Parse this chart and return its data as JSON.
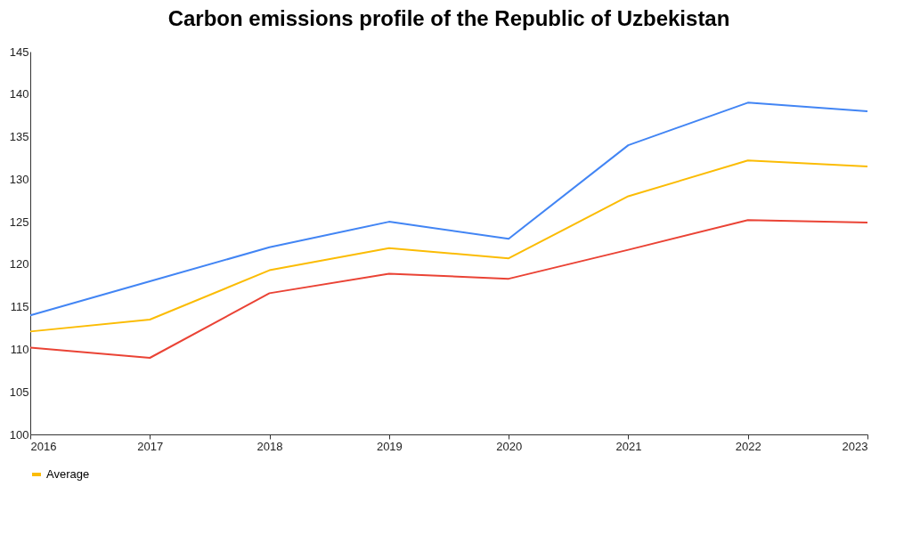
{
  "chart_data": {
    "type": "line",
    "title": "Carbon emissions profile of the Republic of Uzbekistan",
    "x": [
      2016,
      2017,
      2018,
      2019,
      2020,
      2021,
      2022,
      2023
    ],
    "xlim": [
      2016,
      2023
    ],
    "xticks": [
      2016,
      2017,
      2018,
      2019,
      2020,
      2021,
      2022,
      2023
    ],
    "ylim": [
      100,
      145
    ],
    "yticks": [
      100,
      105,
      110,
      115,
      120,
      125,
      130,
      135,
      140,
      145
    ],
    "series": [
      {
        "color": "#4285f4",
        "values": [
          114,
          118,
          122,
          125,
          123,
          134,
          139,
          138
        ]
      },
      {
        "color": "#ea4335",
        "values": [
          110.2,
          109,
          116.6,
          118.9,
          118.3,
          121.7,
          125.2,
          124.9
        ]
      },
      {
        "name": "Average",
        "color": "#fbbc04",
        "values": [
          112.1,
          113.5,
          119.3,
          121.9,
          120.7,
          128,
          132.2,
          131.5
        ]
      }
    ],
    "grid": false,
    "legend": "bottom",
    "marker": "none",
    "line_style": "solid"
  }
}
